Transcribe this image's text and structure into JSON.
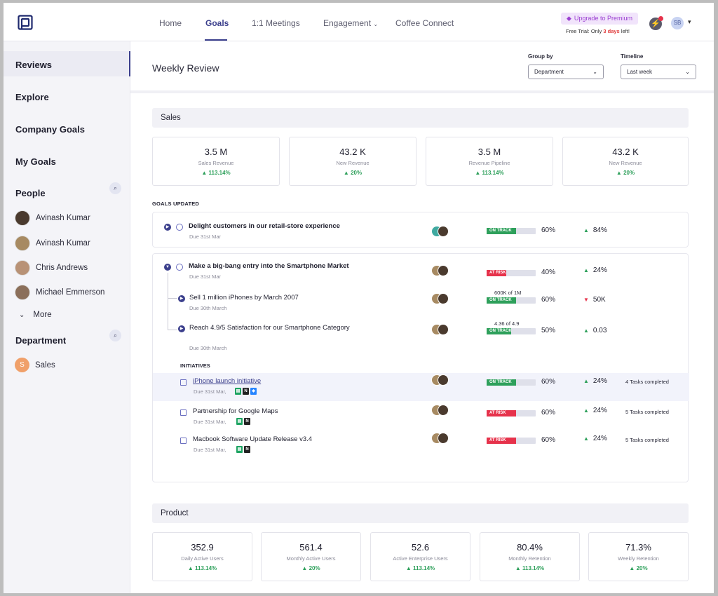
{
  "nav": {
    "items": [
      "Home",
      "Goals",
      "1:1 Meetings",
      "Engagement",
      "Coffee Connect"
    ],
    "active": "Goals",
    "premium_label": "Upgrade to Premium",
    "trial_prefix": "Free Trial:  Only",
    "trial_days": "3 days",
    "trial_suffix": "left!",
    "user_initials": "SB"
  },
  "sidebar": {
    "reviews": "Reviews",
    "explore": "Explore",
    "company_goals": "Company Goals",
    "my_goals": "My Goals",
    "people_title": "People",
    "people": [
      "Avinash Kumar",
      "Avinash Kumar",
      "Chris Andrews",
      "Michael Emmerson"
    ],
    "more": "More",
    "department_title": "Department",
    "department_initial": "S",
    "department": "Sales"
  },
  "header": {
    "title": "Weekly Review",
    "group_by_label": "Group by",
    "group_by_value": "Department",
    "timeline_label": "Timeline",
    "timeline_value": "Last week"
  },
  "sales": {
    "title": "Sales",
    "metrics": [
      {
        "value": "3.5 M",
        "label": "Sales Revenue",
        "change": "113.14%"
      },
      {
        "value": "43.2 K",
        "label": "New Revenue",
        "change": "20%"
      },
      {
        "value": "3.5 M",
        "label": "Revenue Pipeline",
        "change": "113.14%"
      },
      {
        "value": "43.2 K",
        "label": "New Revenue",
        "change": "20%"
      }
    ]
  },
  "goals_updated_label": "GOALS UPDATED",
  "goal1": {
    "title": "Delight customers in our retail-store experience",
    "due": "Due 31st Mar",
    "status": "ON TRACK",
    "progress": 60,
    "pct": "60%",
    "delta": "84%"
  },
  "goal2": {
    "title": "Make a big-bang entry into the Smartphone Market",
    "due": "Due 31st Mar",
    "status": "AT RISK",
    "progress": 40,
    "pct": "40%",
    "delta": "24%",
    "sub1": {
      "title": "Sell 1 million iPhones by March 2007",
      "due": "Due 30th March",
      "note": "600K of 1M",
      "status": "ON TRACK",
      "progress": 60,
      "pct": "60%",
      "delta": "50K"
    },
    "sub2": {
      "title": "Reach 4.9/5 Satisfaction for our Smartphone Category",
      "due": "Due 30th March",
      "note": "4.36 of 4.9",
      "status": "ON TRACK",
      "progress": 50,
      "pct": "50%",
      "delta": "0.03"
    }
  },
  "initiatives_label": "INITIATIVES",
  "initiatives": [
    {
      "title": "iPhone launch initiative",
      "due": "Due 31st Mar,",
      "status": "ON TRACK",
      "progress": 60,
      "pct": "60%",
      "delta": "24%",
      "tasks": "4 Tasks completed"
    },
    {
      "title": "Partnership for Google Maps",
      "due": "Due 31st Mar,",
      "status": "AT RISK",
      "progress": 60,
      "pct": "60%",
      "delta": "24%",
      "tasks": "5 Tasks completed"
    },
    {
      "title": "Macbook Software Update Release v3.4",
      "due": "Due 31st Mar,",
      "status": "AT RISK",
      "progress": 60,
      "pct": "60%",
      "delta": "24%",
      "tasks": "5 Tasks completed"
    }
  ],
  "product": {
    "title": "Product",
    "metrics": [
      {
        "value": "352.9",
        "label": "Daily Active Users",
        "change": "113.14%"
      },
      {
        "value": "561.4",
        "label": "Monthly Active Users",
        "change": "20%"
      },
      {
        "value": "52.6",
        "label": "Active Enterprise Users",
        "change": "113.14%"
      },
      {
        "value": "80.4%",
        "label": "Monthly Retention",
        "change": "113.14%"
      },
      {
        "value": "71.3%",
        "label": "Weekly Retention",
        "change": "20%"
      }
    ]
  },
  "colors": {
    "accent": "#3b3f8c",
    "on_track": "#2ea05b",
    "at_risk": "#e6324b",
    "premium": "#9b3fd1"
  }
}
